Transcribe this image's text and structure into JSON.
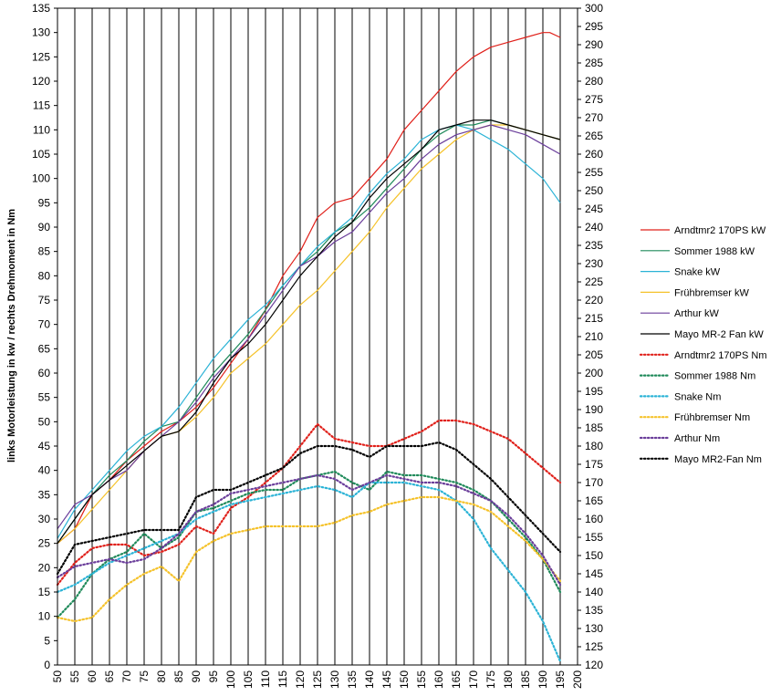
{
  "chart_data": {
    "type": "line",
    "ylabel": "links Motorleistung in kw / rechts Drehmoment in Nm",
    "x_ticks": [
      50,
      55,
      60,
      65,
      70,
      75,
      80,
      85,
      90,
      95,
      100,
      105,
      110,
      115,
      120,
      125,
      130,
      135,
      140,
      145,
      150,
      155,
      160,
      165,
      170,
      175,
      180,
      185,
      190,
      195,
      200
    ],
    "xlim": [
      50,
      200
    ],
    "ylim_left": [
      0,
      135
    ],
    "ylim_right": [
      120,
      300
    ],
    "left_ticks": [
      0,
      5,
      10,
      15,
      20,
      25,
      30,
      35,
      40,
      45,
      50,
      55,
      60,
      65,
      70,
      75,
      80,
      85,
      90,
      95,
      100,
      105,
      110,
      115,
      120,
      125,
      130,
      135
    ],
    "right_ticks": [
      120,
      125,
      130,
      135,
      140,
      145,
      150,
      155,
      160,
      165,
      170,
      175,
      180,
      185,
      190,
      195,
      200,
      205,
      210,
      215,
      220,
      225,
      230,
      235,
      240,
      245,
      250,
      255,
      260,
      265,
      270,
      275,
      280,
      285,
      290,
      295,
      300
    ],
    "grid": "vertical",
    "legend_position": "right",
    "series": [
      {
        "name": "Arndtmr2 170PS kW",
        "color": "#e0201a",
        "style": "solid",
        "axis": "left",
        "x": [
          50,
          55,
          60,
          65,
          70,
          75,
          80,
          85,
          90,
          95,
          100,
          105,
          110,
          115,
          120,
          125,
          130,
          135,
          140,
          145,
          150,
          155,
          160,
          165,
          170,
          175,
          180,
          185,
          190,
          192,
          195
        ],
        "y": [
          25,
          28,
          35,
          38,
          42,
          45,
          48,
          50,
          53,
          57,
          62,
          67,
          73,
          80,
          85,
          92,
          95,
          96,
          100,
          104,
          110,
          114,
          118,
          122,
          125,
          127,
          128,
          129,
          130,
          130,
          129
        ]
      },
      {
        "name": "Sommer 1988 kW",
        "color": "#1f8a5a",
        "style": "solid",
        "axis": "left",
        "x": [
          50,
          55,
          60,
          65,
          70,
          75,
          80,
          85,
          90,
          95,
          100,
          105,
          110,
          115,
          120,
          125,
          130,
          135,
          140,
          145,
          150,
          155,
          160,
          165,
          170,
          175,
          180,
          185,
          190,
          195
        ],
        "y": [
          25,
          30,
          35,
          39,
          42,
          46,
          49,
          50,
          55,
          60,
          64,
          68,
          73,
          78,
          82,
          85,
          89,
          91,
          94,
          98,
          102,
          106,
          109,
          111,
          111,
          112,
          111,
          110,
          109,
          108
        ]
      },
      {
        "name": "Snake kW",
        "color": "#2bb3d6",
        "style": "solid",
        "axis": "left",
        "x": [
          50,
          55,
          60,
          65,
          70,
          75,
          80,
          85,
          90,
          95,
          100,
          105,
          110,
          115,
          120,
          125,
          130,
          135,
          140,
          145,
          150,
          155,
          160,
          165,
          170,
          175,
          180,
          185,
          190,
          195
        ],
        "y": [
          26,
          32,
          36,
          40,
          44,
          47,
          49,
          53,
          58,
          63,
          67,
          71,
          74,
          78,
          82,
          86,
          89,
          92,
          97,
          101,
          104,
          108,
          110,
          111,
          110,
          108,
          106,
          103,
          100,
          95
        ]
      },
      {
        "name": "Frühbremser kW",
        "color": "#f5c22a",
        "style": "solid",
        "axis": "left",
        "x": [
          50,
          55,
          60,
          65,
          70,
          75,
          80,
          85,
          90,
          95,
          100,
          105,
          110,
          115,
          120,
          125,
          130,
          135,
          140,
          145,
          150,
          155,
          160,
          165,
          170,
          175,
          180,
          185,
          190,
          195
        ],
        "y": [
          25,
          28,
          32,
          36,
          40,
          44,
          47,
          48,
          51,
          55,
          60,
          63,
          66,
          70,
          74,
          77,
          81,
          85,
          89,
          94,
          98,
          102,
          105,
          108,
          110,
          111,
          111,
          110,
          109,
          108
        ]
      },
      {
        "name": "Arthur kW",
        "color": "#6a3d9a",
        "style": "solid",
        "axis": "left",
        "x": [
          50,
          55,
          60,
          65,
          70,
          75,
          80,
          85,
          90,
          95,
          100,
          105,
          110,
          115,
          120,
          125,
          130,
          135,
          140,
          145,
          150,
          155,
          160,
          165,
          170,
          175,
          180,
          185,
          190,
          195
        ],
        "y": [
          28,
          33,
          35,
          38,
          40,
          44,
          47,
          50,
          54,
          59,
          63,
          67,
          72,
          77,
          82,
          84,
          87,
          89,
          93,
          97,
          100,
          104,
          107,
          109,
          110,
          111,
          110,
          109,
          107,
          105
        ]
      },
      {
        "name": "Mayo MR-2 Fan kW",
        "color": "#000000",
        "style": "solid",
        "axis": "left",
        "x": [
          50,
          55,
          60,
          65,
          70,
          75,
          80,
          85,
          90,
          95,
          100,
          105,
          110,
          115,
          120,
          125,
          130,
          135,
          140,
          145,
          150,
          155,
          160,
          165,
          170,
          175,
          180,
          185,
          190,
          195
        ],
        "y": [
          25,
          30,
          35,
          38,
          41,
          44,
          47,
          48,
          52,
          58,
          63,
          66,
          70,
          75,
          80,
          84,
          88,
          91,
          96,
          100,
          103,
          106,
          110,
          111,
          112,
          112,
          111,
          110,
          109,
          108
        ]
      },
      {
        "name": "Arndtmr2 170PS Nm",
        "color": "#e0201a",
        "style": "dotted",
        "axis": "right",
        "x": [
          50,
          55,
          60,
          65,
          70,
          75,
          80,
          85,
          90,
          95,
          100,
          105,
          110,
          115,
          120,
          125,
          130,
          135,
          140,
          145,
          150,
          155,
          160,
          165,
          170,
          175,
          180,
          185,
          190,
          195
        ],
        "y": [
          142,
          148,
          152,
          153,
          153,
          150,
          151,
          153,
          158,
          156,
          163,
          166,
          170,
          174,
          180,
          186,
          182,
          181,
          180,
          180,
          182,
          184,
          187,
          187,
          186,
          184,
          182,
          178,
          174,
          170
        ]
      },
      {
        "name": "Sommer 1988 Nm",
        "color": "#1f8a5a",
        "style": "dotted",
        "axis": "right",
        "x": [
          50,
          55,
          60,
          65,
          70,
          75,
          80,
          85,
          90,
          95,
          100,
          105,
          110,
          115,
          120,
          125,
          130,
          135,
          140,
          145,
          150,
          155,
          160,
          165,
          170,
          175,
          180,
          185,
          190,
          195
        ],
        "y": [
          133,
          138,
          145,
          149,
          151,
          156,
          152,
          155,
          162,
          163,
          165,
          167,
          168,
          168,
          171,
          172,
          173,
          170,
          168,
          173,
          172,
          172,
          171,
          170,
          168,
          165,
          160,
          155,
          149,
          140
        ]
      },
      {
        "name": "Snake Nm",
        "color": "#2bb3d6",
        "style": "dotted",
        "axis": "right",
        "x": [
          50,
          55,
          60,
          65,
          70,
          75,
          80,
          85,
          90,
          95,
          100,
          105,
          110,
          115,
          120,
          125,
          130,
          135,
          140,
          145,
          150,
          155,
          160,
          165,
          170,
          175,
          180,
          185,
          190,
          195
        ],
        "y": [
          140,
          142,
          145,
          148,
          150,
          152,
          154,
          156,
          160,
          162,
          164,
          165,
          166,
          167,
          168,
          169,
          168,
          166,
          170,
          170,
          170,
          169,
          168,
          165,
          160,
          152,
          146,
          140,
          132,
          121
        ]
      },
      {
        "name": "Frühbremser  Nm",
        "color": "#f5c22a",
        "style": "dotted",
        "axis": "right",
        "x": [
          50,
          55,
          60,
          65,
          70,
          75,
          80,
          85,
          90,
          95,
          100,
          105,
          110,
          115,
          120,
          125,
          130,
          135,
          140,
          145,
          150,
          155,
          160,
          165,
          170,
          175,
          180,
          185,
          190,
          195
        ],
        "y": [
          133,
          132,
          133,
          138,
          142,
          145,
          147,
          143,
          151,
          154,
          156,
          157,
          158,
          158,
          158,
          158,
          159,
          161,
          162,
          164,
          165,
          166,
          166,
          165,
          164,
          162,
          158,
          154,
          149,
          143
        ]
      },
      {
        "name": "Arthur Nm",
        "color": "#6a3d9a",
        "style": "dotted",
        "axis": "right",
        "x": [
          50,
          55,
          60,
          65,
          70,
          75,
          80,
          85,
          90,
          95,
          100,
          105,
          110,
          115,
          120,
          125,
          130,
          135,
          140,
          145,
          150,
          155,
          160,
          165,
          170,
          175,
          180,
          185,
          190,
          195
        ],
        "y": [
          144,
          147,
          148,
          149,
          148,
          149,
          152,
          156,
          162,
          164,
          167,
          168,
          169,
          170,
          171,
          172,
          171,
          168,
          170,
          172,
          171,
          170,
          170,
          169,
          167,
          165,
          161,
          156,
          150,
          142
        ]
      },
      {
        "name": "Mayo MR2-Fan Nm",
        "color": "#000000",
        "style": "dotted",
        "axis": "right",
        "x": [
          50,
          55,
          60,
          65,
          70,
          75,
          80,
          85,
          90,
          95,
          100,
          105,
          110,
          115,
          120,
          125,
          130,
          135,
          140,
          145,
          150,
          155,
          160,
          165,
          170,
          175,
          180,
          185,
          190,
          195
        ],
        "y": [
          145,
          153,
          154,
          155,
          156,
          157,
          157,
          157,
          166,
          168,
          168,
          170,
          172,
          174,
          178,
          180,
          180,
          179,
          177,
          180,
          180,
          180,
          181,
          179,
          175,
          171,
          166,
          161,
          156,
          151
        ]
      }
    ]
  }
}
